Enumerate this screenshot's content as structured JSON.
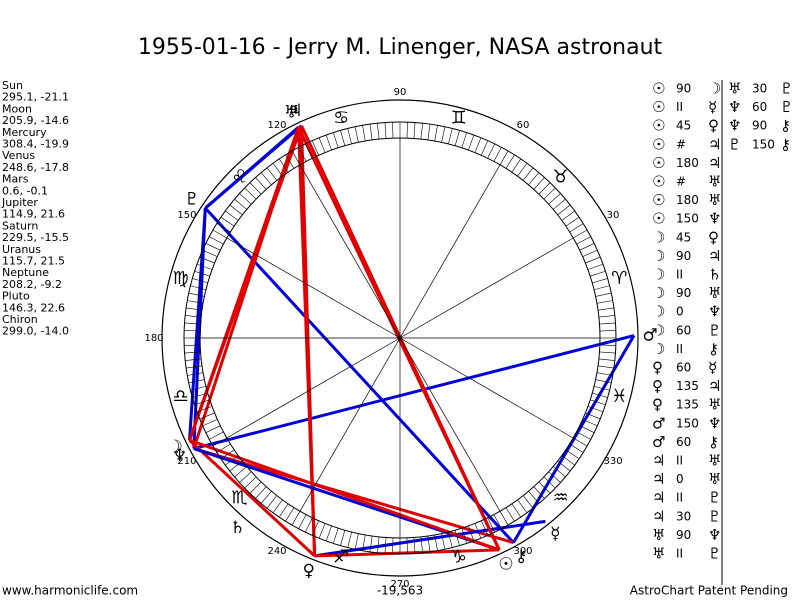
{
  "header": {
    "title": "1955-01-16 - Jerry M. Linenger, NASA astronaut"
  },
  "planets": [
    {
      "name": "Sun",
      "glyph": "☉",
      "coords": "295.1, -21.1"
    },
    {
      "name": "Moon",
      "glyph": "☽",
      "coords": "205.9, -14.6"
    },
    {
      "name": "Mercury",
      "glyph": "☿",
      "coords": "308.4, -19.9"
    },
    {
      "name": "Venus",
      "glyph": "♀",
      "coords": "248.6, -17.8"
    },
    {
      "name": "Mars",
      "glyph": "♂",
      "coords": "0.6, -0.1"
    },
    {
      "name": "Jupiter",
      "glyph": "♃",
      "coords": "114.9, 21.6"
    },
    {
      "name": "Saturn",
      "glyph": "♄",
      "coords": "229.5, -15.5"
    },
    {
      "name": "Uranus",
      "glyph": "♅",
      "coords": "115.7, 21.5"
    },
    {
      "name": "Neptune",
      "glyph": "♆",
      "coords": "208.2, -9.2"
    },
    {
      "name": "Pluto",
      "glyph": "♇",
      "coords": "146.3, 22.6"
    },
    {
      "name": "Chiron",
      "glyph": "⚷",
      "coords": "299.0, -14.0"
    }
  ],
  "signs": [
    "♈",
    "♉",
    "♊",
    "♋",
    "♌",
    "♍",
    "♎",
    "♏",
    "♐",
    "♑",
    "♒",
    "♓"
  ],
  "degree_labels": [
    "30",
    "60",
    "90",
    "120",
    "150",
    "180",
    "210",
    "240",
    "270",
    "300",
    "330"
  ],
  "aspects": [
    [
      {
        "a": "☉",
        "aspect": "90",
        "b": "☽",
        "color": "#e00000"
      },
      {
        "a": "☉",
        "aspect": "II",
        "b": "☿"
      },
      {
        "a": "☉",
        "aspect": "45",
        "b": "♀",
        "color": "#e00000"
      },
      {
        "a": "☉",
        "aspect": "#",
        "b": "♃"
      },
      {
        "a": "☉",
        "aspect": "180",
        "b": "♃",
        "color": "#e00000"
      },
      {
        "a": "☉",
        "aspect": "#",
        "b": "♅"
      },
      {
        "a": "☉",
        "aspect": "180",
        "b": "♅",
        "color": "#e00000"
      },
      {
        "a": "☉",
        "aspect": "150",
        "b": "♆",
        "color": "#0000dd"
      },
      {
        "a": "☽",
        "aspect": "45",
        "b": "♀",
        "color": "#e00000"
      },
      {
        "a": "☽",
        "aspect": "90",
        "b": "♃",
        "color": "#e00000"
      },
      {
        "a": "☽",
        "aspect": "II",
        "b": "♄"
      },
      {
        "a": "☽",
        "aspect": "90",
        "b": "♅",
        "color": "#e00000"
      },
      {
        "a": "☽",
        "aspect": "0",
        "b": "♆"
      },
      {
        "a": "☽",
        "aspect": "60",
        "b": "♇",
        "color": "#0000dd"
      },
      {
        "a": "☽",
        "aspect": "II",
        "b": "⚷"
      },
      {
        "a": "♀",
        "aspect": "60",
        "b": "☿",
        "color": "#0000dd"
      },
      {
        "a": "♀",
        "aspect": "135",
        "b": "♃",
        "color": "#e00000"
      },
      {
        "a": "♀",
        "aspect": "135",
        "b": "♅",
        "color": "#e00000"
      },
      {
        "a": "♂",
        "aspect": "150",
        "b": "♆",
        "color": "#0000dd"
      },
      {
        "a": "♂",
        "aspect": "60",
        "b": "⚷",
        "color": "#0000dd"
      },
      {
        "a": "♃",
        "aspect": "II",
        "b": "♅"
      },
      {
        "a": "♃",
        "aspect": "0",
        "b": "♅"
      },
      {
        "a": "♃",
        "aspect": "II",
        "b": "♇"
      },
      {
        "a": "♃",
        "aspect": "30",
        "b": "♇",
        "color": "#0000dd"
      },
      {
        "a": "♅",
        "aspect": "90",
        "b": "♆",
        "color": "#e00000"
      },
      {
        "a": "♅",
        "aspect": "II",
        "b": "♇"
      }
    ],
    [
      {
        "a": "♅",
        "aspect": "30",
        "b": "♇",
        "color": "#0000dd"
      },
      {
        "a": "♆",
        "aspect": "60",
        "b": "♇",
        "color": "#0000dd"
      },
      {
        "a": "♆",
        "aspect": "90",
        "b": "⚷",
        "color": "#e00000"
      },
      {
        "a": "♇",
        "aspect": "150",
        "b": "⚷",
        "color": "#0000dd"
      }
    ]
  ],
  "footer": {
    "site": "www.harmoniclife.com",
    "number": "-19,563",
    "note": "AstroChart Patent Pending"
  }
}
